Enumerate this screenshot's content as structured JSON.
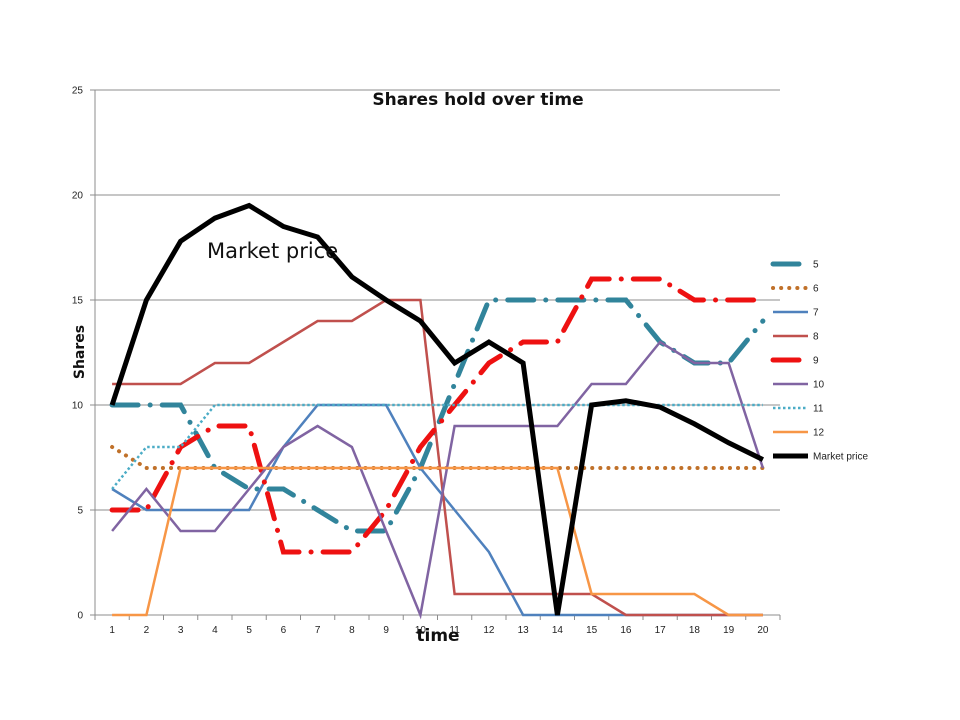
{
  "chart_data": {
    "type": "line",
    "title": "Shares hold over time",
    "xlabel": "time",
    "ylabel": "Shares",
    "annotation": "Market price",
    "x": [
      1,
      2,
      3,
      4,
      5,
      6,
      7,
      8,
      9,
      10,
      11,
      12,
      13,
      14,
      15,
      16,
      17,
      18,
      19,
      20
    ],
    "ylim": [
      0,
      25
    ],
    "yticks": [
      0,
      5,
      10,
      15,
      20,
      25
    ],
    "grid": true,
    "legend_position": "right",
    "series": [
      {
        "name": "5",
        "color": "#31849b",
        "dash": "long-dash-dot",
        "width": 5,
        "values": [
          10,
          10,
          10,
          7,
          6,
          6,
          5,
          4,
          4,
          7,
          11,
          15,
          15,
          15,
          15,
          15,
          13,
          12,
          12,
          14
        ]
      },
      {
        "name": "6",
        "color": "#c0712a",
        "dash": "round-dot",
        "width": 4,
        "values": [
          8,
          7,
          7,
          7,
          7,
          7,
          7,
          7,
          7,
          7,
          7,
          7,
          7,
          7,
          7,
          7,
          7,
          7,
          7,
          7
        ]
      },
      {
        "name": "7",
        "color": "#4f81bd",
        "dash": "solid",
        "width": 2.5,
        "values": [
          6,
          5,
          5,
          5,
          5,
          8,
          10,
          10,
          10,
          7,
          5,
          3,
          0,
          0,
          0,
          0,
          0,
          0,
          0,
          0
        ]
      },
      {
        "name": "8",
        "color": "#c0504d",
        "dash": "solid",
        "width": 2.5,
        "values": [
          11,
          11,
          11,
          12,
          12,
          13,
          14,
          14,
          15,
          15,
          1,
          1,
          1,
          1,
          1,
          0,
          0,
          0,
          0,
          0
        ]
      },
      {
        "name": "9",
        "color": "#ee1111",
        "dash": "long-dash-dot",
        "width": 5,
        "values": [
          5,
          5,
          8,
          9,
          9,
          3,
          3,
          3,
          5,
          8,
          10,
          12,
          13,
          13,
          16,
          16,
          16,
          15,
          15,
          15
        ]
      },
      {
        "name": "10",
        "color": "#8064a2",
        "dash": "solid",
        "width": 2.5,
        "values": [
          4,
          6,
          4,
          4,
          6,
          8,
          9,
          8,
          4,
          0,
          9,
          9,
          9,
          9,
          11,
          11,
          13,
          12,
          12,
          7
        ]
      },
      {
        "name": "11",
        "color": "#4bacc6",
        "dash": "square-dot",
        "width": 2.5,
        "values": [
          6,
          8,
          8,
          10,
          10,
          10,
          10,
          10,
          10,
          10,
          10,
          10,
          10,
          10,
          10,
          10,
          10,
          10,
          10,
          10
        ]
      },
      {
        "name": "12",
        "color": "#f79646",
        "dash": "solid",
        "width": 2.5,
        "values": [
          0,
          0,
          7,
          7,
          7,
          7,
          7,
          7,
          7,
          7,
          7,
          7,
          7,
          7,
          1,
          1,
          1,
          1,
          0,
          0
        ]
      },
      {
        "name": "Market price",
        "color": "#000000",
        "dash": "solid",
        "width": 5,
        "values": [
          10,
          15,
          17.8,
          18.9,
          19.5,
          18.5,
          18,
          16.1,
          15,
          14,
          12,
          13,
          12,
          0,
          10,
          10.2,
          9.9,
          9.1,
          8.2,
          7.4
        ]
      }
    ]
  }
}
